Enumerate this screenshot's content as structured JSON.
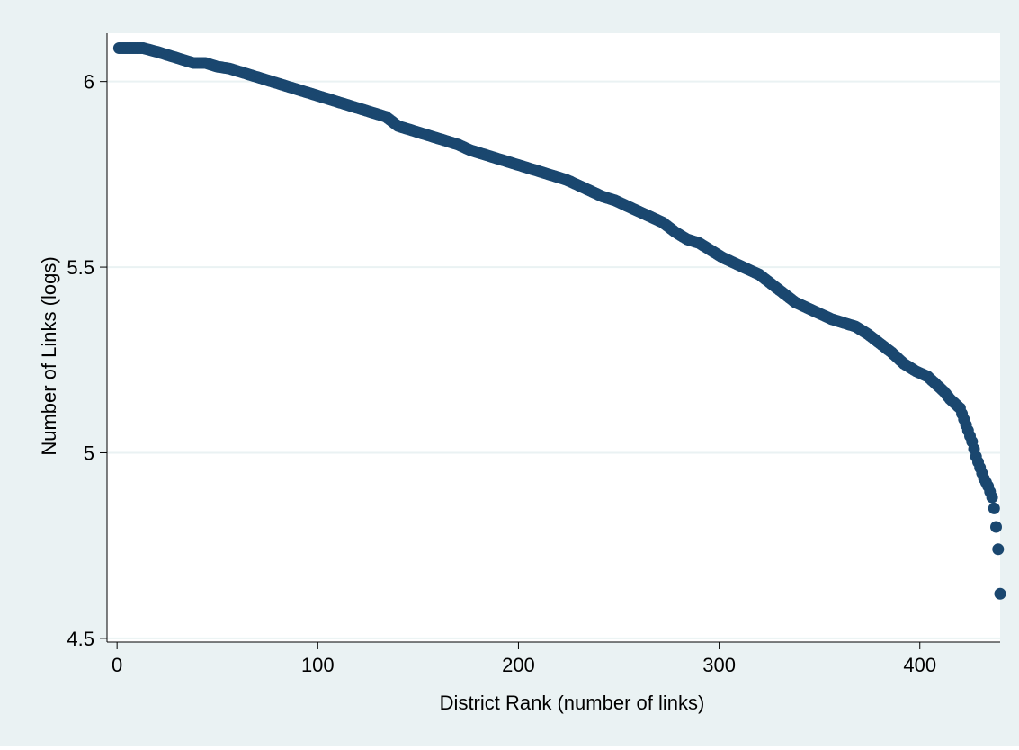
{
  "chart_data": {
    "type": "scatter",
    "title": "",
    "xlabel": "District Rank (number of links)",
    "ylabel": "Number of Links (logs)",
    "xlim": [
      -5,
      440
    ],
    "ylim": [
      4.49,
      6.13
    ],
    "xticks": [
      {
        "value": 0,
        "label": "0"
      },
      {
        "value": 100,
        "label": "100"
      },
      {
        "value": 200,
        "label": "200"
      },
      {
        "value": 300,
        "label": "300"
      },
      {
        "value": 400,
        "label": "400"
      }
    ],
    "yticks": [
      {
        "value": 4.5,
        "label": "4.5"
      },
      {
        "value": 5,
        "label": "5"
      },
      {
        "value": 5.5,
        "label": "5.5"
      },
      {
        "value": 6,
        "label": "6"
      }
    ],
    "grid": "horizontal",
    "colors": {
      "outer_background": "#eaf2f3",
      "plot_background": "#ffffff",
      "gridline": "#eaf2f3",
      "marker": "#1a476f"
    },
    "series": [
      {
        "marker": "filled-circle",
        "x": [
          1,
          6,
          13,
          20,
          26,
          32,
          38,
          44,
          50,
          56,
          62,
          68,
          74,
          80,
          86,
          92,
          98,
          104,
          110,
          116,
          122,
          128,
          134,
          140,
          146,
          152,
          158,
          164,
          170,
          176,
          182,
          188,
          194,
          200,
          206,
          212,
          218,
          224,
          230,
          236,
          242,
          248,
          254,
          260,
          266,
          272,
          278,
          284,
          290,
          296,
          302,
          308,
          314,
          320,
          326,
          332,
          338,
          344,
          350,
          356,
          362,
          368,
          374,
          380,
          386,
          392,
          398,
          404,
          408,
          412,
          415,
          418,
          420,
          422,
          424,
          426,
          428,
          430,
          432,
          434,
          436,
          437,
          438,
          439,
          440
        ],
        "y": [
          6.09,
          6.09,
          6.09,
          6.08,
          6.07,
          6.06,
          6.05,
          6.05,
          6.04,
          6.035,
          6.025,
          6.015,
          6.005,
          5.995,
          5.985,
          5.975,
          5.965,
          5.955,
          5.945,
          5.935,
          5.925,
          5.915,
          5.905,
          5.88,
          5.87,
          5.86,
          5.85,
          5.84,
          5.83,
          5.815,
          5.805,
          5.795,
          5.785,
          5.775,
          5.765,
          5.755,
          5.745,
          5.735,
          5.72,
          5.705,
          5.69,
          5.68,
          5.665,
          5.65,
          5.635,
          5.62,
          5.595,
          5.575,
          5.565,
          5.545,
          5.525,
          5.51,
          5.495,
          5.48,
          5.455,
          5.43,
          5.405,
          5.39,
          5.375,
          5.36,
          5.35,
          5.34,
          5.32,
          5.295,
          5.27,
          5.24,
          5.22,
          5.205,
          5.185,
          5.165,
          5.145,
          5.13,
          5.12,
          5.09,
          5.06,
          5.03,
          4.99,
          4.96,
          4.93,
          4.91,
          4.88,
          4.85,
          4.8,
          4.74,
          4.62
        ]
      }
    ]
  }
}
